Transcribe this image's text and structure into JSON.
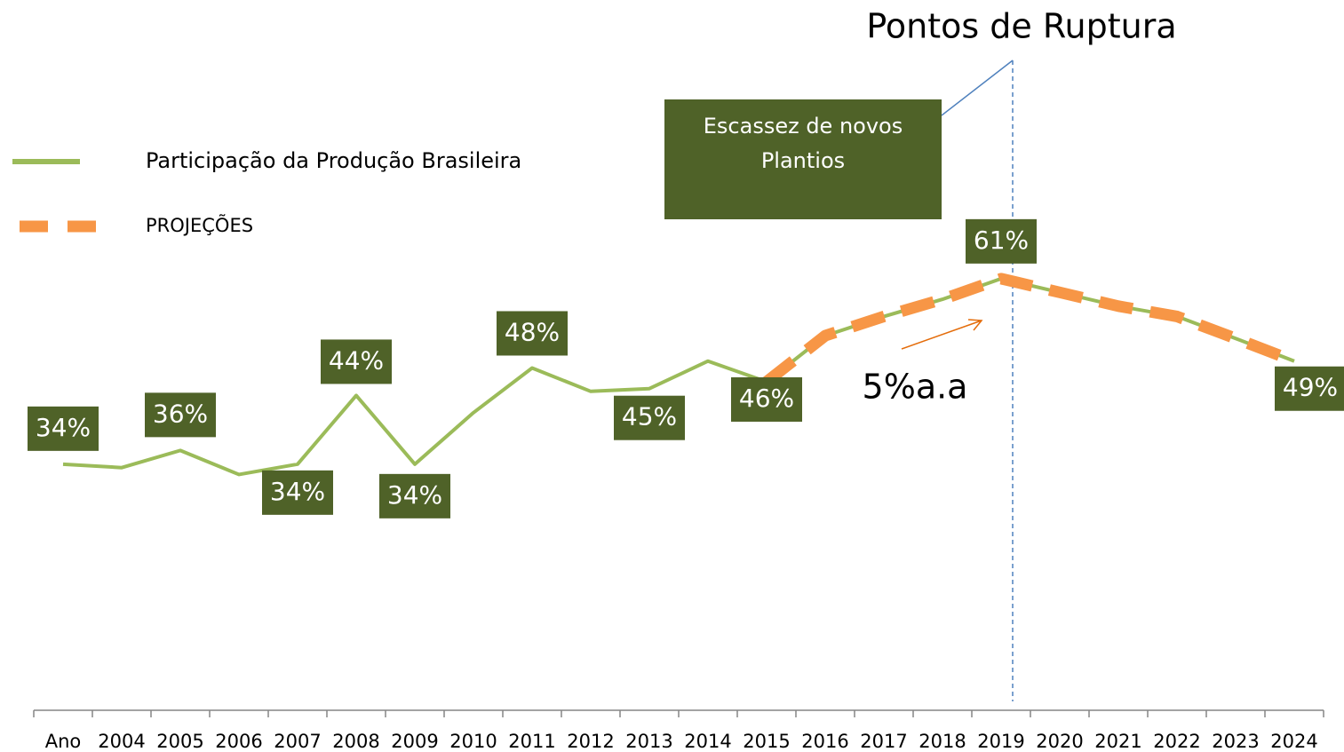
{
  "chart_data": {
    "type": "line",
    "title": "Pontos de Ruptura",
    "annotations": [
      "5%a.a",
      "Escassez de novos",
      "Plantios"
    ],
    "categories": [
      "Ano",
      "2004",
      "2005",
      "2006",
      "2007",
      "2008",
      "2009",
      "2010",
      "2011",
      "2012",
      "2013",
      "2014",
      "2015",
      "2016",
      "2017",
      "2018",
      "2019",
      "2020",
      "2021",
      "2022",
      "2023",
      "2024"
    ],
    "ylim": [
      0,
      100
    ],
    "series": [
      {
        "name": "Participação da Produção Brasileira",
        "color": "#9bbb59",
        "values": [
          34,
          33.5,
          36,
          32.5,
          34,
          44,
          34,
          41.5,
          48,
          44.6,
          45,
          49,
          46,
          52.7,
          55.5,
          58,
          61,
          59,
          57,
          55.5,
          52.3,
          49
        ],
        "value_labels": [
          "34%",
          null,
          "36%",
          null,
          "34%",
          "44%",
          "34%",
          null,
          "48%",
          null,
          "45%",
          null,
          "46%",
          null,
          null,
          null,
          "61%",
          null,
          null,
          null,
          null,
          "49%"
        ]
      },
      {
        "name": "PROJEÇÕES",
        "color": "#f79646",
        "values": [
          null,
          null,
          null,
          null,
          null,
          null,
          null,
          null,
          null,
          null,
          null,
          null,
          46,
          52.7,
          55.5,
          58,
          61,
          59,
          57,
          55.5,
          52.3,
          49
        ]
      }
    ]
  }
}
